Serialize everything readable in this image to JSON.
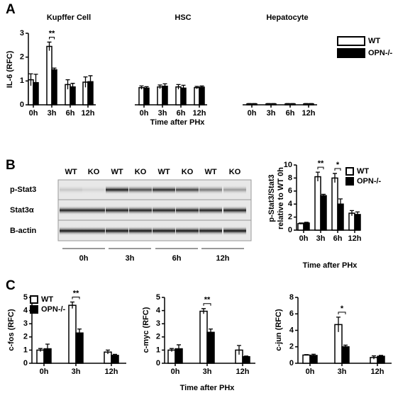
{
  "panel_labels": [
    "A",
    "B",
    "C"
  ],
  "blot": {
    "lanes": [
      "WT",
      "KO",
      "WT",
      "KO",
      "WT",
      "KO",
      "WT",
      "KO"
    ],
    "rows": [
      "p-Stat3",
      "Stat3α",
      "B-actin"
    ],
    "times": [
      "0h",
      "3h",
      "6h",
      "12h"
    ]
  },
  "chart_data": [
    {
      "type": "bar",
      "ylabel": [
        "IL-6 (RFC)"
      ],
      "xlabel": "Time after PHx",
      "groups": [
        "Kupffer Cell",
        "HSC",
        "Hepatocyte"
      ],
      "categories": [
        "0h",
        "3h",
        "6h",
        "12h",
        "0h",
        "3h",
        "6h",
        "12h",
        "0h",
        "3h",
        "6h",
        "12h"
      ],
      "series": [
        {
          "name": "WT",
          "color": "#ffffff",
          "values": [
            1.05,
            2.45,
            0.85,
            0.95,
            0.72,
            0.75,
            0.75,
            0.72,
            0.04,
            0.04,
            0.04,
            0.04
          ],
          "errors": [
            0.25,
            0.18,
            0.2,
            0.22,
            0.07,
            0.08,
            0.1,
            0.05,
            0.01,
            0.01,
            0.01,
            0.01
          ]
        },
        {
          "name": "OPN-/-",
          "color": "#000000",
          "values": [
            0.93,
            1.47,
            0.75,
            0.97,
            0.7,
            0.78,
            0.7,
            0.74,
            0.04,
            0.04,
            0.04,
            0.04
          ],
          "errors": [
            0.35,
            0.07,
            0.15,
            0.25,
            0.06,
            0.1,
            0.12,
            0.05,
            0.01,
            0.01,
            0.01,
            0.01
          ]
        }
      ],
      "ylim": [
        0,
        3
      ],
      "yticks": [
        0,
        1,
        2,
        3
      ],
      "legend": "outside right",
      "annotations": [
        "**"
      ]
    },
    {
      "type": "bar",
      "ylabel": [
        "p-Stat3/Stat3",
        "relative to WT 0h"
      ],
      "xlabel": "Time after PHx",
      "categories": [
        "0h",
        "3h",
        "6h",
        "12h"
      ],
      "series": [
        {
          "name": "WT",
          "color": "#ffffff",
          "values": [
            1.0,
            8.2,
            8.0,
            2.6
          ],
          "errors": [
            0.1,
            0.7,
            0.7,
            0.4
          ]
        },
        {
          "name": "OPN-/-",
          "color": "#000000",
          "values": [
            1.1,
            5.3,
            4.0,
            2.4
          ],
          "errors": [
            0.1,
            0.2,
            0.8,
            0.4
          ]
        }
      ],
      "ylim": [
        0,
        10
      ],
      "yticks": [
        0,
        2,
        4,
        6,
        8,
        10
      ],
      "legend": "upper right",
      "annotations": [
        "**",
        "*"
      ]
    },
    {
      "type": "bar",
      "ylabel": [
        "c-fos (RFC)"
      ],
      "categories": [
        "0h",
        "3h",
        "12h"
      ],
      "series": [
        {
          "name": "WT",
          "color": "#ffffff",
          "values": [
            1.0,
            4.4,
            0.85
          ],
          "errors": [
            0.12,
            0.25,
            0.15
          ]
        },
        {
          "name": "OPN-/-",
          "color": "#000000",
          "values": [
            1.1,
            2.3,
            0.6
          ],
          "errors": [
            0.35,
            0.3,
            0.08
          ]
        }
      ],
      "ylim": [
        0,
        5
      ],
      "yticks": [
        0,
        1,
        2,
        3,
        4,
        5
      ],
      "legend": "upper left",
      "annotations": [
        "**"
      ]
    },
    {
      "type": "bar",
      "ylabel": [
        "c-myc (RFC)"
      ],
      "xlabel": "Time after PHx",
      "categories": [
        "0h",
        "3h",
        "12h"
      ],
      "series": [
        {
          "name": "WT",
          "color": "#ffffff",
          "values": [
            1.0,
            3.95,
            1.0
          ],
          "errors": [
            0.12,
            0.2,
            0.35
          ]
        },
        {
          "name": "OPN-/-",
          "color": "#000000",
          "values": [
            1.1,
            2.35,
            0.5
          ],
          "errors": [
            0.3,
            0.25,
            0.05
          ]
        }
      ],
      "ylim": [
        0,
        5
      ],
      "yticks": [
        0,
        1,
        2,
        3,
        4,
        5
      ],
      "annotations": [
        "**"
      ]
    },
    {
      "type": "bar",
      "ylabel": [
        "c-jun (RFC)"
      ],
      "categories": [
        "0h",
        "3h",
        "12h"
      ],
      "series": [
        {
          "name": "WT",
          "color": "#ffffff",
          "values": [
            1.0,
            4.7,
            0.7
          ],
          "errors": [
            0.05,
            0.9,
            0.2
          ]
        },
        {
          "name": "OPN-/-",
          "color": "#000000",
          "values": [
            0.95,
            2.0,
            0.85
          ],
          "errors": [
            0.15,
            0.2,
            0.1
          ]
        }
      ],
      "ylim": [
        0,
        8
      ],
      "yticks": [
        0,
        2,
        4,
        6,
        8
      ],
      "annotations": [
        "*"
      ]
    }
  ]
}
